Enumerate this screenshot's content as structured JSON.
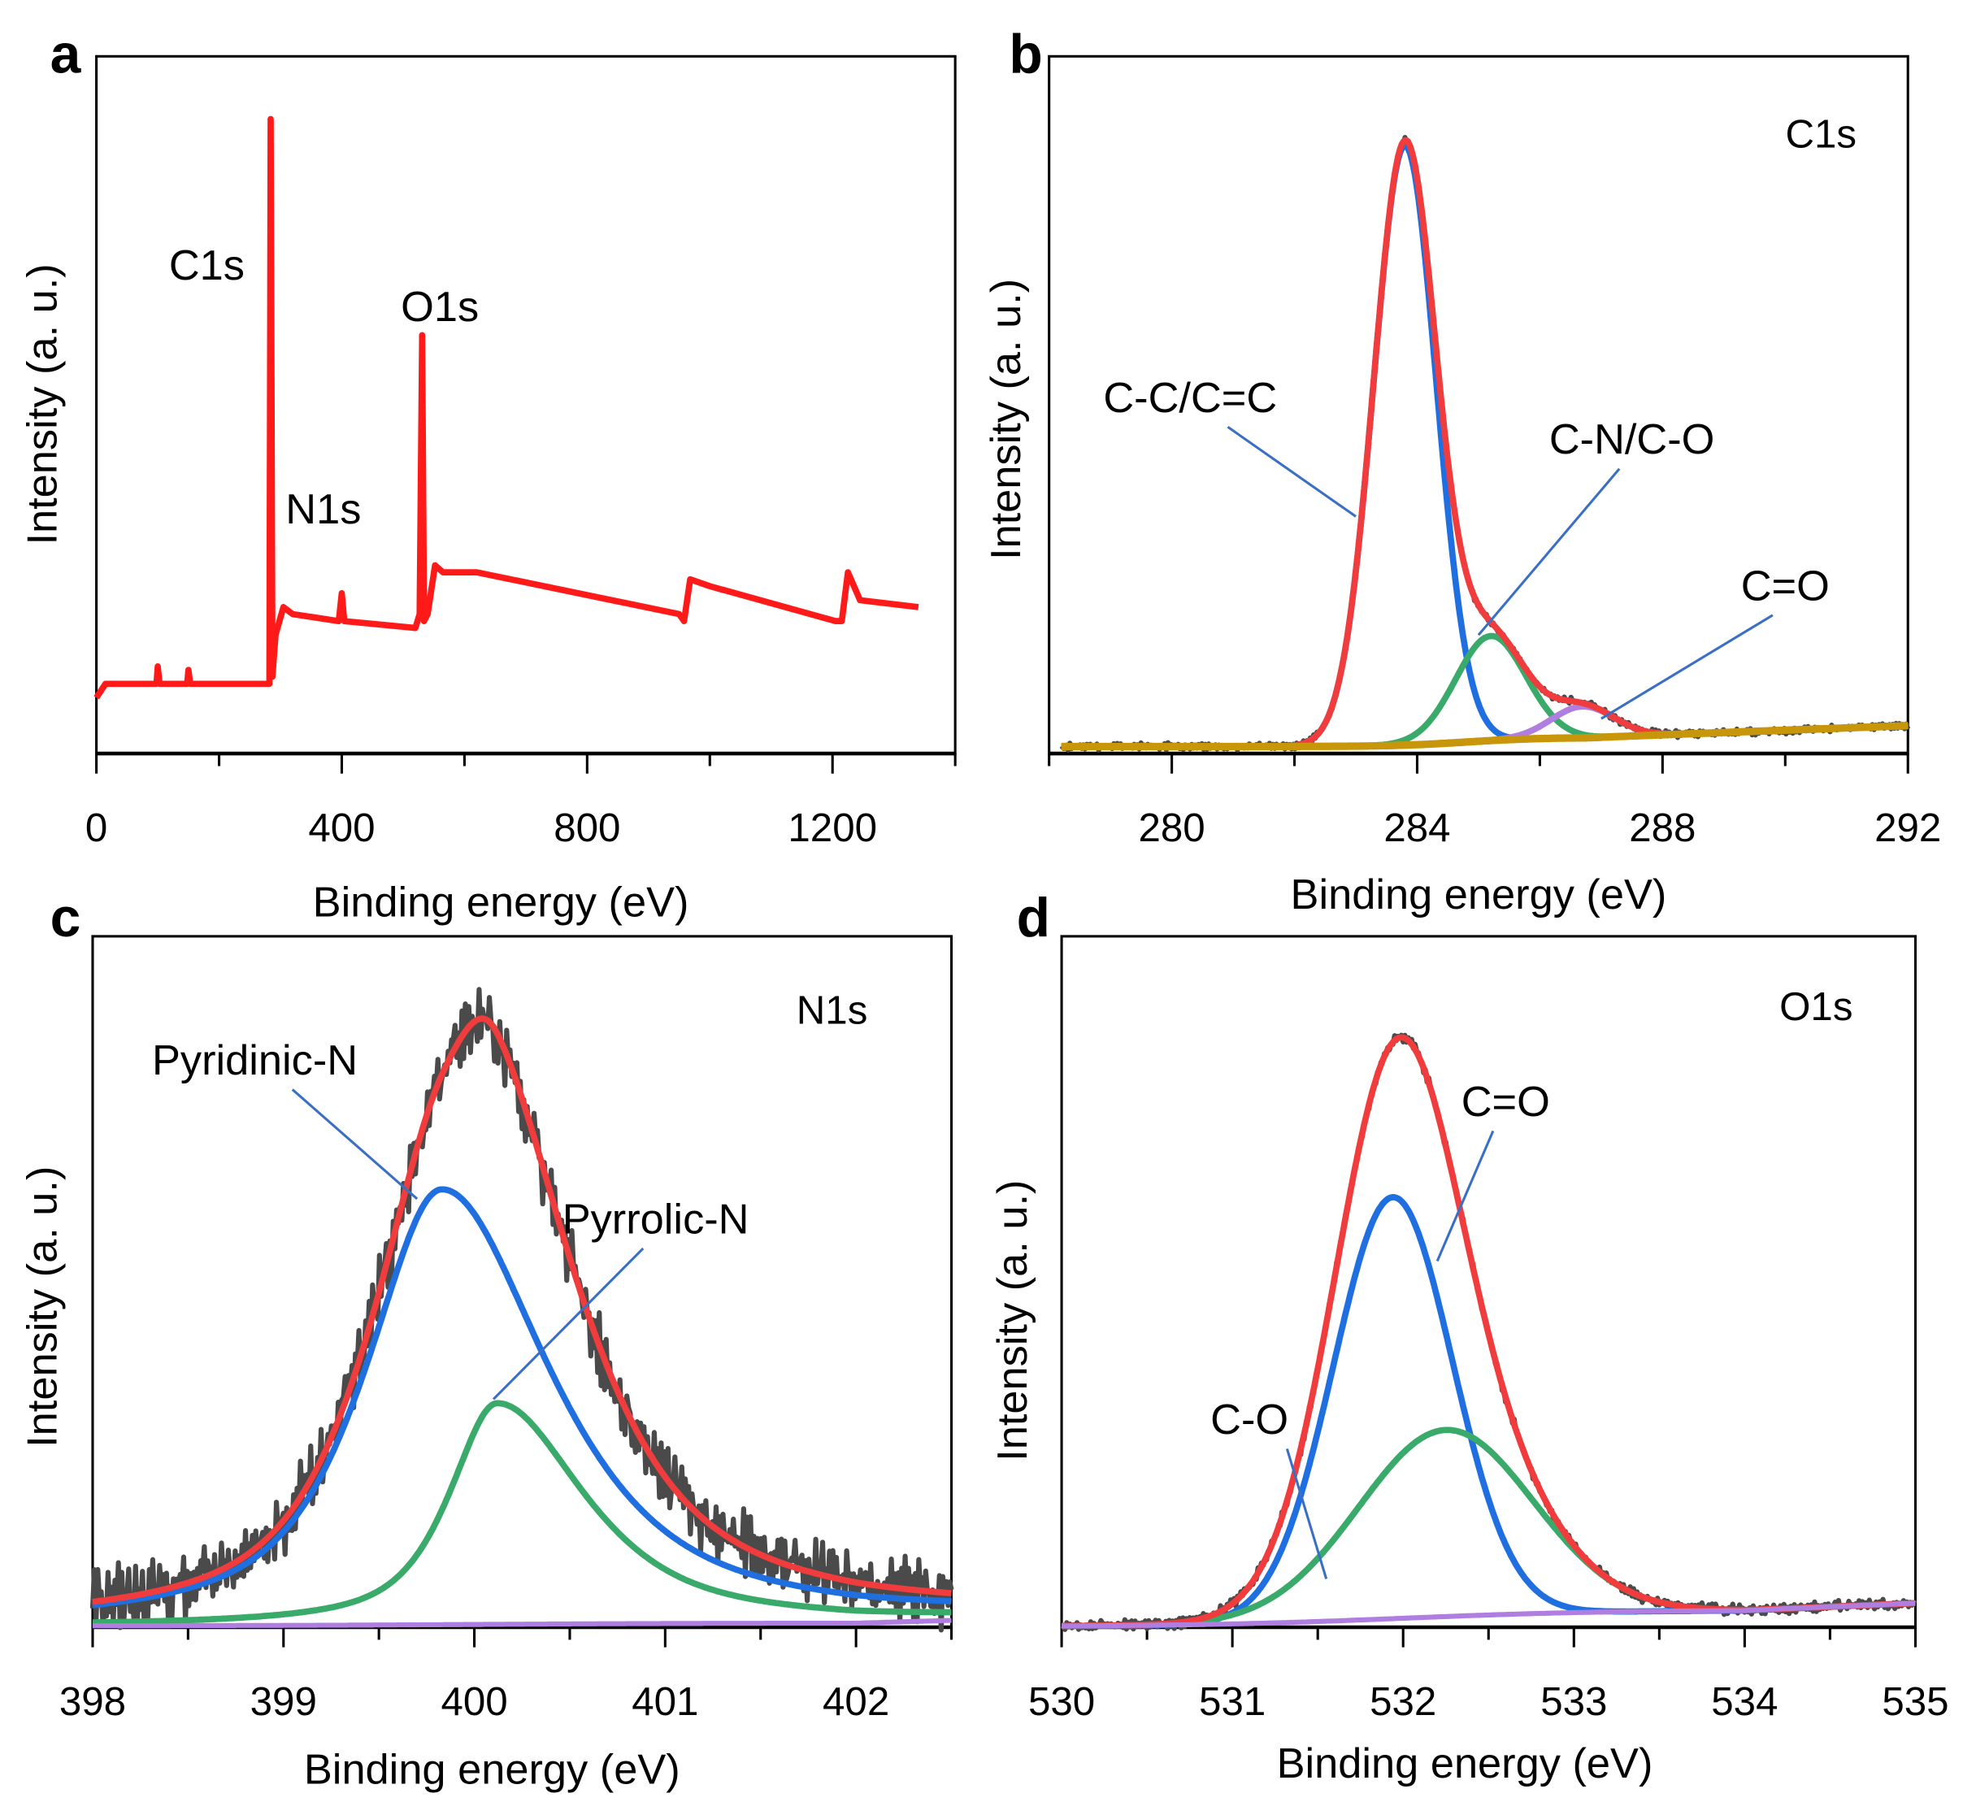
{
  "colors": {
    "raw": "#4a4a4a",
    "envelope": "#f03c3c",
    "blue": "#1f6fe0",
    "green": "#3aaa6a",
    "purple": "#b07ee0",
    "gold": "#c8960a",
    "survey": "#ff1a1a"
  },
  "chart_data": [
    {
      "panel": "a",
      "type": "line",
      "title": "",
      "xlabel": "Binding energy (eV)",
      "ylabel": "Intensity (a. u.)",
      "xlim": [
        0,
        1400
      ],
      "ylim": [
        0,
        100
      ],
      "xticks": [
        0,
        400,
        800,
        1200
      ],
      "xtick_labels": [
        "0",
        "400",
        "800",
        "1200"
      ],
      "series": [
        {
          "name": "survey",
          "color": "#ff1a1a",
          "points": [
            [
              0,
              8
            ],
            [
              15,
              10
            ],
            [
              98,
              10
            ],
            [
              100,
              12.5
            ],
            [
              103,
              10
            ],
            [
              148,
              10
            ],
            [
              150,
              12
            ],
            [
              153,
              10
            ],
            [
              282,
              10
            ],
            [
              284,
              91
            ],
            [
              287,
              11
            ],
            [
              292,
              17
            ],
            [
              305,
              21
            ],
            [
              320,
              20
            ],
            [
              395,
              19
            ],
            [
              400,
              23
            ],
            [
              404,
              19
            ],
            [
              520,
              18
            ],
            [
              527,
              20
            ],
            [
              531,
              60
            ],
            [
              534,
              19
            ],
            [
              540,
              20
            ],
            [
              552,
              27
            ],
            [
              565,
              26
            ],
            [
              620,
              26
            ],
            [
              950,
              20
            ],
            [
              958,
              19
            ],
            [
              968,
              25
            ],
            [
              1000,
              24
            ],
            [
              1205,
              19
            ],
            [
              1215,
              19
            ],
            [
              1225,
              26
            ],
            [
              1245,
              22
            ],
            [
              1340,
              21
            ]
          ]
        }
      ],
      "annotations": [
        {
          "text": "C1s",
          "x": 180,
          "y": 68
        },
        {
          "text": "O1s",
          "x": 560,
          "y": 62
        },
        {
          "text": "N1s",
          "x": 370,
          "y": 33
        }
      ]
    },
    {
      "panel": "b",
      "type": "line",
      "title": "C1s",
      "xlabel": "Binding energy (eV)",
      "ylabel": "Intensity (a. u.)",
      "xlim": [
        278,
        292
      ],
      "ylim": [
        0,
        100
      ],
      "xticks": [
        280,
        284,
        288,
        292
      ],
      "xtick_labels": [
        "280",
        "284",
        "288",
        "292"
      ],
      "background": {
        "start": 1.0,
        "mid": 2.3,
        "end": 4.0,
        "step_center": 284.8
      },
      "peaks": [
        {
          "name": "C-C/C=C",
          "center": 283.8,
          "fwhm": 1.2,
          "height": 86,
          "color": "#1f6fe0"
        },
        {
          "name": "C-N/C-O",
          "center": 285.2,
          "fwhm": 1.35,
          "height": 15,
          "color": "#3aaa6a"
        },
        {
          "name": "C=O",
          "center": 286.7,
          "fwhm": 1.2,
          "height": 4.5,
          "color": "#b07ee0"
        }
      ],
      "data_range": [
        278.2,
        292
      ],
      "annotations": [
        {
          "text": "C-C/C=C",
          "x": 280.3,
          "y": 49,
          "to": [
            283.0,
            34
          ]
        },
        {
          "text": "C-N/C-O",
          "x": 287.5,
          "y": 43,
          "to": [
            285.0,
            17
          ]
        },
        {
          "text": "C=O",
          "x": 290.0,
          "y": 22,
          "to": [
            287.0,
            5
          ]
        }
      ]
    },
    {
      "panel": "c",
      "type": "line",
      "title": "N1s",
      "xlabel": "Binding energy (eV)",
      "ylabel": "Intensity (a. u.)",
      "xlim": [
        398,
        402.5
      ],
      "ylim": [
        0,
        100
      ],
      "xticks": [
        398,
        399,
        400,
        401,
        402
      ],
      "xtick_labels": [
        "398",
        "399",
        "400",
        "401",
        "402"
      ],
      "background": {
        "start": 0.2,
        "mid": 0.6,
        "end": 1.0,
        "step_center": 400
      },
      "peaks": [
        {
          "name": "Pyridinic-N",
          "center": 399.83,
          "fwhm": 0.95,
          "height": 63,
          "eta": 0.75,
          "tail": 1.4,
          "color": "#1f6fe0"
        },
        {
          "name": "Pyrrolic-N",
          "center": 400.12,
          "fwhm": 0.6,
          "height": 32,
          "eta": 0.75,
          "tail": 1.8,
          "color": "#3aaa6a"
        }
      ],
      "data_range": [
        398,
        402.5
      ],
      "noise": 4,
      "annotations": [
        {
          "text": "Pyridinic-N",
          "x": 398.85,
          "y": 80,
          "to": [
            399.7,
            62
          ]
        },
        {
          "text": "Pyrrolic-N",
          "x": 400.95,
          "y": 57,
          "to": [
            400.1,
            33
          ]
        }
      ]
    },
    {
      "panel": "d",
      "type": "line",
      "title": "O1s",
      "xlabel": "Binding energy (eV)",
      "ylabel": "Intensity (a. u.)",
      "xlim": [
        530,
        535
      ],
      "ylim": [
        0,
        100
      ],
      "xticks": [
        530,
        531,
        532,
        533,
        534,
        535
      ],
      "xtick_labels": [
        "530",
        "531",
        "532",
        "533",
        "534",
        "535"
      ],
      "background": {
        "start": 0.1,
        "mid": 2.5,
        "end": 3.5,
        "step_center": 532
      },
      "peaks": [
        {
          "name": "C=O",
          "center": 531.94,
          "fwhm": 0.82,
          "height": 61,
          "color": "#1f6fe0"
        },
        {
          "name": "C-O",
          "center": 532.25,
          "fwhm": 1.2,
          "height": 27,
          "color": "#3aaa6a"
        }
      ],
      "data_range": [
        530,
        535
      ],
      "noise": 0.6,
      "annotations": [
        {
          "text": "C=O",
          "x": 532.6,
          "y": 74,
          "to": [
            532.2,
            53
          ]
        },
        {
          "text": "C-O",
          "x": 531.1,
          "y": 28,
          "to": [
            531.55,
            7
          ]
        }
      ]
    }
  ]
}
